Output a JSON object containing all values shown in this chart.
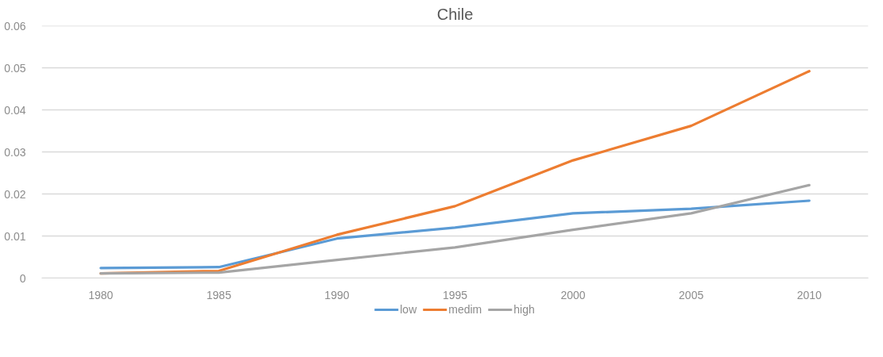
{
  "chart_data": {
    "type": "line",
    "title": "Chile",
    "categories": [
      "1980",
      "1985",
      "1990",
      "1995",
      "2000",
      "2005",
      "2010"
    ],
    "series": [
      {
        "name": "low",
        "color": "#5b9bd5",
        "values": [
          0.0024,
          0.0026,
          0.0094,
          0.012,
          0.0154,
          0.0165,
          0.0184
        ]
      },
      {
        "name": "medim",
        "color": "#ed7d31",
        "values": [
          0.0011,
          0.0017,
          0.0103,
          0.0171,
          0.028,
          0.0362,
          0.0492
        ]
      },
      {
        "name": "high",
        "color": "#a5a5a5",
        "values": [
          0.0011,
          0.0013,
          0.0043,
          0.0073,
          0.0115,
          0.0154,
          0.0221
        ]
      }
    ],
    "ylim": [
      0,
      0.06
    ],
    "yticks": [
      0,
      0.01,
      0.02,
      0.03,
      0.04,
      0.05,
      0.06
    ],
    "grid": "y",
    "legend": "bottom",
    "marker": "none",
    "line_style": "solid"
  }
}
